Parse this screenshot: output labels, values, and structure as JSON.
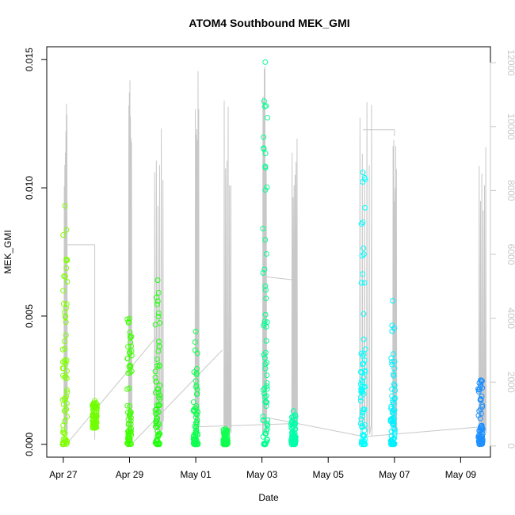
{
  "chart_data": {
    "type": "scatter",
    "title": "ATOM4 Southbound MEK_GMI",
    "xlabel": "Date",
    "ylabel": "MEK_GMI",
    "x_ticks": [
      "Apr 27",
      "Apr 29",
      "May 01",
      "May 03",
      "May 05",
      "May 07",
      "May 09"
    ],
    "y_ticks": [
      "0.000",
      "0.005",
      "0.010",
      "0.015"
    ],
    "y_tick_values": [
      0.0,
      0.005,
      0.01,
      0.015
    ],
    "ylim": [
      -0.0005,
      0.0155
    ],
    "xlim_days_from_apr27": [
      -0.5,
      12.9
    ],
    "y2_ticks": [
      0,
      2000,
      4000,
      6000,
      8000,
      10000,
      12000
    ],
    "y2lim": [
      -350,
      12500
    ],
    "y2_axis_color": "#c8c8c8",
    "grid": false,
    "legend": "none",
    "point_marker": "open circle",
    "colors": {
      "apr27": "#7fff00",
      "apr28": "#70ff00",
      "apr29": "#3fff00",
      "apr29b": "#22ff10",
      "may01": "#10ff50",
      "may03": "#00ff90",
      "may04": "#00ffa8",
      "may06": "#00ffff",
      "may07": "#00f0ff",
      "may09": "#1e90ff",
      "altitude_line": "#c8c8c8"
    },
    "clusters": [
      {
        "day": 0.05,
        "ymin": 0.0,
        "ymax": 0.0093,
        "dense_max": 0.0075,
        "color": "apr27"
      },
      {
        "day": 0.95,
        "ymin": 0.0011,
        "ymax": 0.0017,
        "dense_max": 0.0016,
        "color": "apr28"
      },
      {
        "day": 2.0,
        "ymin": 0.0,
        "ymax": 0.0049,
        "dense_max": 0.0049,
        "color": "apr29"
      },
      {
        "day": 2.85,
        "ymin": 0.0,
        "ymax": 0.0064,
        "dense_max": 0.0056,
        "color": "apr29b"
      },
      {
        "day": 4.0,
        "ymin": 0.0,
        "ymax": 0.0044,
        "dense_max": 0.0029,
        "color": "may01"
      },
      {
        "day": 4.9,
        "ymin": 0.0,
        "ymax": 0.0006,
        "dense_max": 0.0006,
        "color": "may01"
      },
      {
        "day": 6.1,
        "ymin": 0.0,
        "ymax": 0.0149,
        "dense_max": 0.0135,
        "color": "may03"
      },
      {
        "day": 6.95,
        "ymin": 0.0,
        "ymax": 0.0013,
        "dense_max": 0.0012,
        "color": "may04"
      },
      {
        "day": 9.05,
        "ymin": 0.0,
        "ymax": 0.0106,
        "dense_max": 0.0106,
        "color": "may06"
      },
      {
        "day": 9.95,
        "ymin": 0.0,
        "ymax": 0.0056,
        "dense_max": 0.0033,
        "color": "may07"
      },
      {
        "day": 12.6,
        "ymin": 0.0,
        "ymax": 0.0025,
        "dense_max": 0.0025,
        "color": "may09"
      }
    ],
    "altitude_flights": [
      {
        "start": 0.02,
        "end": 0.1,
        "peak": 11300
      },
      {
        "start": 1.97,
        "end": 2.05,
        "peak": 11700
      },
      {
        "start": 2.75,
        "end": 3.0,
        "peak": 10200
      },
      {
        "start": 3.98,
        "end": 4.08,
        "peak": 12200
      },
      {
        "start": 4.85,
        "end": 5.05,
        "peak": 11000
      },
      {
        "start": 6.02,
        "end": 6.12,
        "peak": 12200
      },
      {
        "start": 6.9,
        "end": 7.05,
        "peak": 9900
      },
      {
        "start": 8.95,
        "end": 9.3,
        "peak": 11700
      },
      {
        "start": 9.95,
        "end": 10.05,
        "peak": 9700
      },
      {
        "start": 12.55,
        "end": 12.75,
        "peak": 9500
      }
    ]
  }
}
